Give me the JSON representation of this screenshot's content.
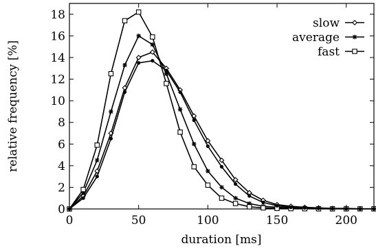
{
  "chart_data": {
    "type": "line",
    "title": "",
    "xlabel": "duration [ms]",
    "ylabel": "relative frequency [%]",
    "xlim": [
      0,
      220
    ],
    "ylim": [
      0,
      19
    ],
    "xticks": [
      0,
      50,
      100,
      150,
      200
    ],
    "yticks": [
      0,
      2,
      4,
      6,
      8,
      10,
      12,
      14,
      16,
      18
    ],
    "grid": false,
    "legend_position": "top-right",
    "series": [
      {
        "name": "slow",
        "marker": "diamond",
        "x": [
          0,
          10,
          20,
          30,
          40,
          50,
          60,
          70,
          80,
          90,
          100,
          110,
          120,
          130,
          140,
          150,
          160,
          170,
          180,
          190,
          200,
          210,
          220
        ],
        "y": [
          0,
          1.2,
          3.5,
          7.0,
          11.2,
          14.0,
          14.5,
          13.0,
          11.0,
          8.6,
          6.3,
          4.5,
          2.7,
          1.5,
          0.8,
          0.4,
          0.25,
          0.15,
          0.1,
          0.05,
          0.05,
          0.02,
          0.02
        ]
      },
      {
        "name": "average",
        "marker": "star",
        "x": [
          0,
          10,
          20,
          30,
          40,
          50,
          60,
          70,
          80,
          90,
          100,
          110,
          120,
          130,
          140,
          150,
          160,
          170,
          180,
          190,
          200,
          210,
          220
        ],
        "y": [
          0,
          1.5,
          4.5,
          9.0,
          13.3,
          16.0,
          15.2,
          12.5,
          9.2,
          6.0,
          3.5,
          2.0,
          1.0,
          0.5,
          0.25,
          0.15,
          0.1,
          0.05,
          0.03,
          0.02,
          0.01,
          0.01,
          0.01
        ]
      },
      {
        "name": "fast",
        "marker": "square",
        "x": [
          0,
          10,
          20,
          30,
          40,
          50,
          60,
          70,
          80,
          90,
          100,
          110,
          120,
          130,
          140,
          150,
          160,
          170,
          180,
          190,
          200,
          210,
          220
        ],
        "y": [
          0,
          1.8,
          5.9,
          12.5,
          17.4,
          18.2,
          15.9,
          11.6,
          7.1,
          3.9,
          2.2,
          1.0,
          0.5,
          0.2,
          0.1,
          0.05,
          0.03,
          0.02,
          0.01,
          0.01,
          0.01,
          0.01,
          0.01
        ]
      },
      {
        "name": "",
        "marker": "circle",
        "x": [
          0,
          10,
          20,
          30,
          40,
          50,
          60,
          70,
          80,
          90,
          100,
          110,
          120,
          130,
          140,
          150,
          160,
          170,
          180,
          190,
          200,
          210,
          220
        ],
        "y": [
          0,
          1.0,
          3.0,
          6.5,
          10.8,
          13.5,
          13.7,
          12.8,
          10.8,
          8.2,
          5.8,
          3.9,
          2.3,
          1.2,
          0.6,
          0.3,
          0.15,
          0.1,
          0.05,
          0.03,
          0.02,
          0.01,
          0.01
        ]
      }
    ]
  }
}
